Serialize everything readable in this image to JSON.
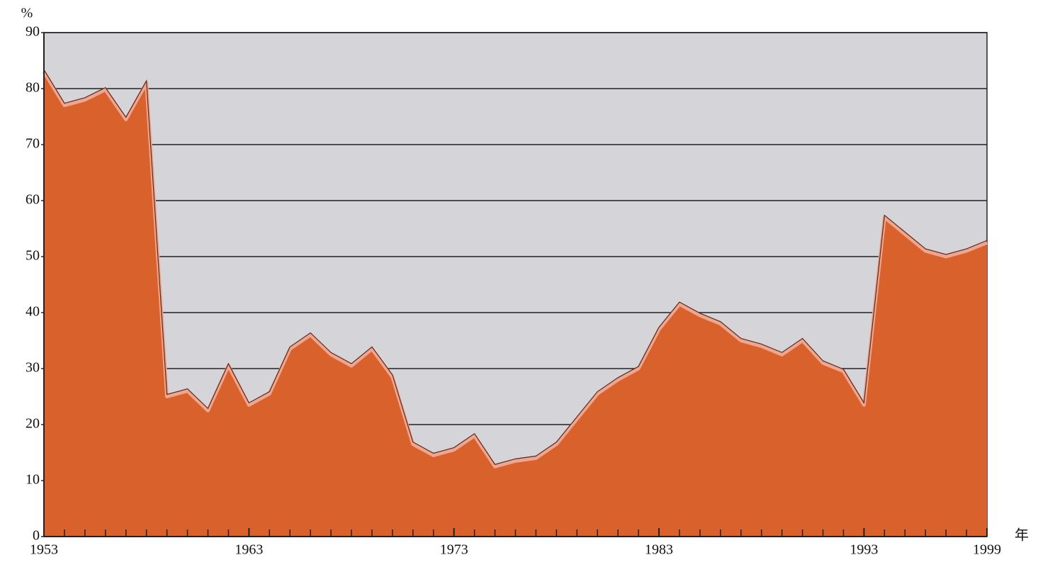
{
  "chart_data": {
    "type": "area",
    "y_label": "%",
    "x_label": "年",
    "x": [
      1953,
      1954,
      1955,
      1956,
      1957,
      1958,
      1959,
      1960,
      1961,
      1962,
      1963,
      1964,
      1965,
      1966,
      1967,
      1968,
      1969,
      1970,
      1971,
      1972,
      1973,
      1974,
      1975,
      1976,
      1977,
      1978,
      1979,
      1980,
      1981,
      1982,
      1983,
      1984,
      1985,
      1986,
      1987,
      1988,
      1989,
      1990,
      1991,
      1992,
      1993,
      1994,
      1995,
      1996,
      1997,
      1998,
      1999
    ],
    "values": [
      83,
      77,
      78,
      79.8,
      74.5,
      81,
      25,
      26,
      22.5,
      30.5,
      23.5,
      25.5,
      33.5,
      36,
      32.5,
      30.5,
      33.5,
      28.5,
      16.5,
      14.5,
      15.5,
      18,
      12.5,
      13.5,
      14,
      16.5,
      21,
      25.5,
      28,
      30,
      37,
      41.5,
      39.5,
      38,
      35,
      34,
      32.5,
      35,
      31,
      29.5,
      23.5,
      57,
      54,
      51,
      50,
      51,
      52.5
    ],
    "color": "#d8612c",
    "edge_color": "#efa58e",
    "background": "#d5d5d9",
    "xlim": [
      1953,
      1999
    ],
    "xticks": [
      1953,
      1963,
      1973,
      1983,
      1993,
      1999
    ],
    "ylim": [
      0,
      90
    ],
    "yticks": [
      0,
      10,
      20,
      30,
      40,
      50,
      60,
      70,
      80,
      90
    ],
    "grid": true
  }
}
